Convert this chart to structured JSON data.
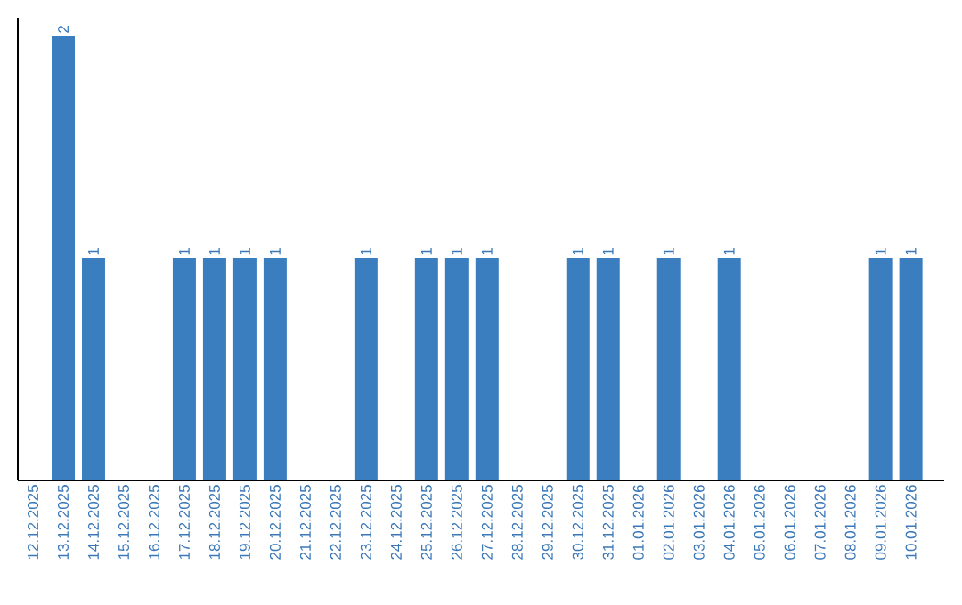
{
  "chart_data": {
    "type": "bar",
    "categories": [
      "12.12.2025",
      "13.12.2025",
      "14.12.2025",
      "15.12.2025",
      "16.12.2025",
      "17.12.2025",
      "18.12.2025",
      "19.12.2025",
      "20.12.2025",
      "21.12.2025",
      "22.12.2025",
      "23.12.2025",
      "24.12.2025",
      "25.12.2025",
      "26.12.2025",
      "27.12.2025",
      "28.12.2025",
      "29.12.2025",
      "30.12.2025",
      "31.12.2025",
      "01.01.2026",
      "02.01.2026",
      "03.01.2026",
      "04.01.2026",
      "05.01.2026",
      "06.01.2026",
      "07.01.2026",
      "08.01.2026",
      "09.01.2026",
      "10.01.2026"
    ],
    "values": [
      0,
      2,
      1,
      0,
      0,
      1,
      1,
      1,
      1,
      0,
      0,
      1,
      0,
      1,
      1,
      1,
      0,
      0,
      1,
      1,
      0,
      1,
      0,
      1,
      0,
      0,
      0,
      0,
      1,
      1
    ],
    "value_labels": [
      null,
      "2",
      "1",
      null,
      null,
      "1",
      "1",
      "1",
      "1",
      null,
      null,
      "1",
      null,
      "1",
      "1",
      "1",
      null,
      null,
      "1",
      "1",
      null,
      "1",
      null,
      "1",
      null,
      null,
      null,
      null,
      "1",
      "1"
    ],
    "color": "#3a7ebf",
    "ylim": [
      0,
      2.08
    ],
    "tick_labels": "x"
  }
}
